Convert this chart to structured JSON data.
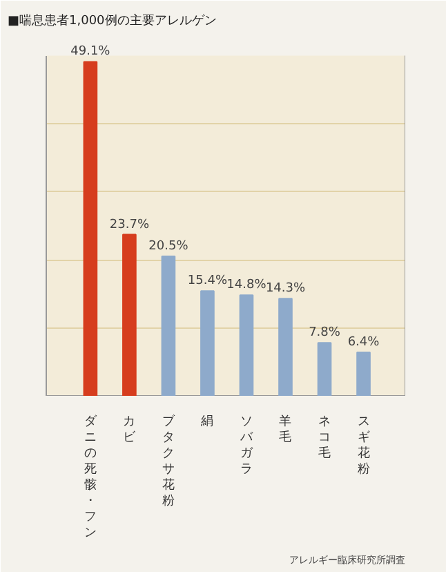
{
  "chart_data": {
    "type": "bar",
    "title": "■喘息患者1,000例の主要アレルゲン",
    "categories": [
      "ダニの死骸・フン",
      "カビ",
      "ブタクサ花粉",
      "絹",
      "ソバガラ",
      "羊毛",
      "ネコ毛",
      "スギ花粉"
    ],
    "values": [
      49.1,
      23.7,
      20.5,
      15.4,
      14.8,
      14.3,
      7.8,
      6.4
    ],
    "colors": [
      "#d63d1e",
      "#d63d1e",
      "#8eaacb",
      "#8eaacb",
      "#8eaacb",
      "#8eaacb",
      "#8eaacb",
      "#8eaacb"
    ],
    "value_labels": [
      "49.1%",
      "23.7%",
      "20.5%",
      "15.4%",
      "14.8%",
      "14.3%",
      "7.8%",
      "6.4%"
    ],
    "ylim": [
      0,
      50
    ],
    "yticks": [
      {
        "value": 10,
        "label": null
      },
      {
        "value": 20,
        "label": null
      },
      {
        "value": 30,
        "label": null
      },
      {
        "value": 40,
        "label": null
      }
    ],
    "grid": "y",
    "tick_labels": "x",
    "annotations": [
      "アレルギー臨床研究所調査"
    ]
  }
}
